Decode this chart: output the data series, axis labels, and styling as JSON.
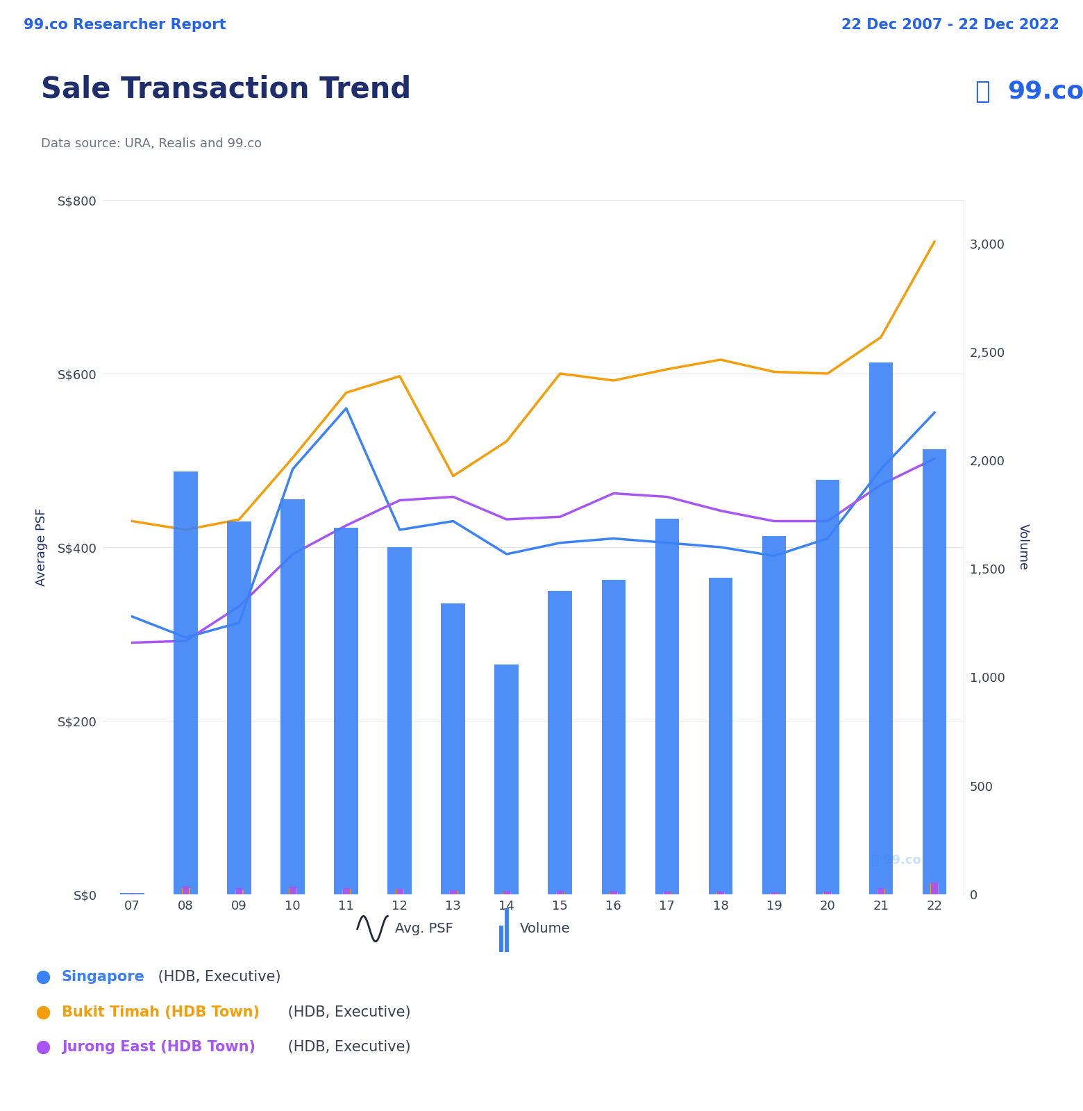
{
  "years": [
    2007,
    2008,
    2009,
    2010,
    2011,
    2012,
    2013,
    2014,
    2015,
    2016,
    2017,
    2018,
    2019,
    2020,
    2021,
    2022
  ],
  "year_labels": [
    "07",
    "08",
    "09",
    "10",
    "11",
    "12",
    "13",
    "14",
    "15",
    "16",
    "17",
    "18",
    "19",
    "20",
    "21",
    "22"
  ],
  "volume_sg": [
    5,
    1950,
    1720,
    1820,
    1690,
    1600,
    1340,
    1060,
    1400,
    1450,
    1730,
    1460,
    1650,
    1910,
    2450,
    2050
  ],
  "volume_bt": [
    2,
    30,
    20,
    30,
    25,
    25,
    15,
    10,
    10,
    10,
    10,
    10,
    8,
    10,
    25,
    50
  ],
  "volume_je": [
    3,
    40,
    30,
    35,
    30,
    25,
    20,
    15,
    15,
    15,
    12,
    12,
    10,
    12,
    30,
    55
  ],
  "singapore_psf": [
    320,
    296,
    313,
    490,
    560,
    420,
    430,
    392,
    405,
    410,
    405,
    400,
    390,
    410,
    490,
    555
  ],
  "bukit_timah_psf": [
    430,
    420,
    432,
    503,
    578,
    597,
    482,
    522,
    600,
    592,
    605,
    616,
    602,
    600,
    642,
    752
  ],
  "jurong_east_psf": [
    290,
    292,
    332,
    392,
    425,
    454,
    458,
    432,
    435,
    462,
    458,
    442,
    430,
    430,
    472,
    502
  ],
  "header_bg": "#dce8f8",
  "header_text_color": "#2563eb",
  "header_left": "99.co Researcher Report",
  "header_right": "22 Dec 2007 - 22 Dec 2022",
  "title": "Sale Transaction Trend",
  "subtitle": "Data source: URA, Realis and 99.co",
  "ylabel_left": "Average PSF",
  "ylabel_right": "Volume",
  "ylim_left": [
    0,
    800
  ],
  "ylim_right": [
    0,
    3200
  ],
  "yticks_left": [
    0,
    200,
    400,
    600,
    800
  ],
  "yticks_left_labels": [
    "S$0",
    "S$200",
    "S$400",
    "S$600",
    "S$800"
  ],
  "yticks_right": [
    0,
    500,
    1000,
    1500,
    2000,
    2500,
    3000
  ],
  "bar_color_sg": "#3b82f6",
  "bar_color_bt": "#f59e0b",
  "bar_color_je": "#a855f7",
  "singapore_line_color": "#3b82f6",
  "bukit_timah_line_color": "#f59e0b",
  "jurong_east_line_color": "#a855f7",
  "title_color": "#1e2d6b",
  "tick_color": "#9ca3af",
  "axis_label_color": "#1e2d6b",
  "bg_color": "#ffffff",
  "black_bottom": "#000000"
}
